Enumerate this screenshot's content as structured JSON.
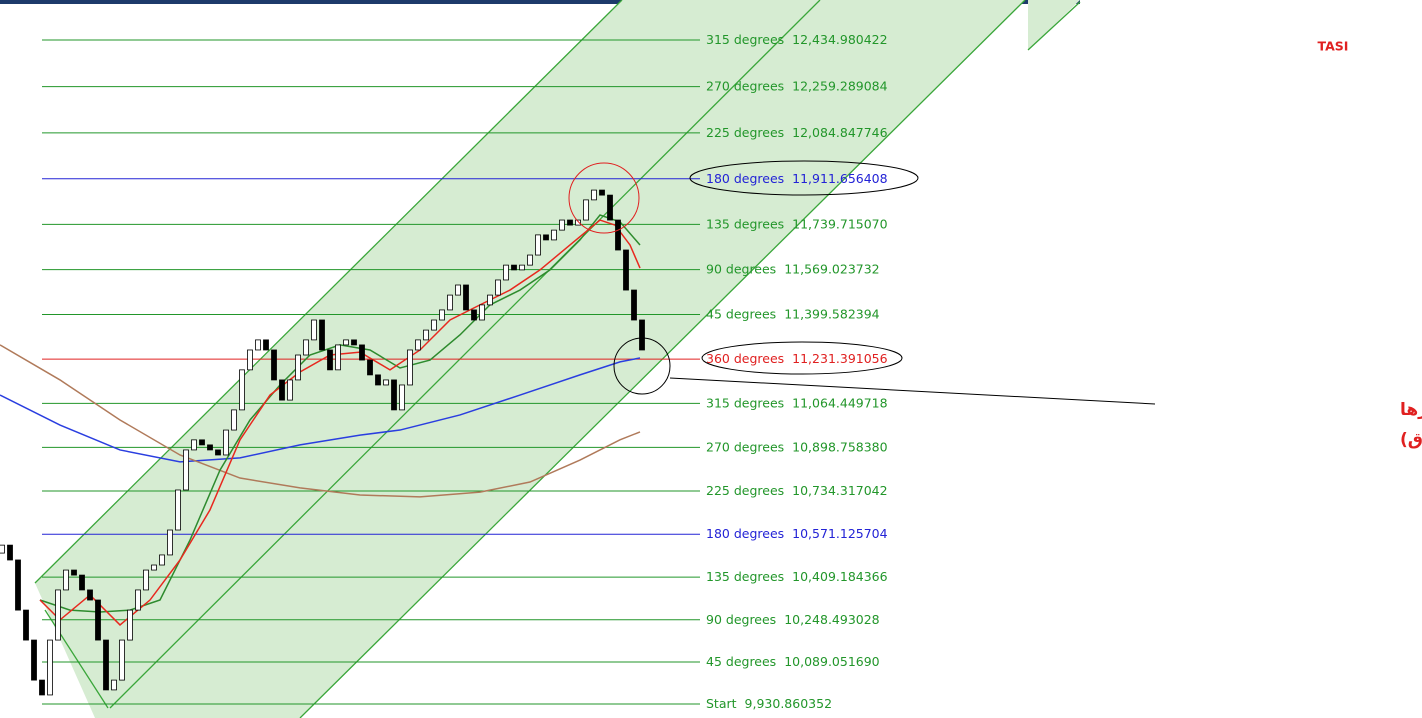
{
  "chart_data": {
    "type": "candlestick",
    "title": "TASI",
    "annotation": [
      "منطقة ارتداد مهمه كسرها",
      "غير جيد (العبرة بالاغلاق)"
    ],
    "levels": [
      {
        "label": "315 degrees",
        "value": 12434.980422,
        "value_label": "12,434.980422",
        "color": "#22962a"
      },
      {
        "label": "270 degrees",
        "value": 12259.289084,
        "value_label": "12,259.289084",
        "color": "#22962a"
      },
      {
        "label": "225 degrees",
        "value": 12084.847746,
        "value_label": "12,084.847746",
        "color": "#22962a"
      },
      {
        "label": "180 degrees",
        "value": 11911.656408,
        "value_label": "11,911.656408",
        "color": "#2323d6"
      },
      {
        "label": "135 degrees",
        "value": 11739.71507,
        "value_label": "11,739.715070",
        "color": "#22962a"
      },
      {
        "label": "90 degrees",
        "value": 11569.023732,
        "value_label": "11,569.023732",
        "color": "#22962a"
      },
      {
        "label": "45 degrees",
        "value": 11399.582394,
        "value_label": "11,399.582394",
        "color": "#22962a"
      },
      {
        "label": "360 degrees",
        "value": 11231.391056,
        "value_label": "11,231.391056",
        "color": "#e02020"
      },
      {
        "label": "315 degrees",
        "value": 11064.449718,
        "value_label": "11,064.449718",
        "color": "#22962a"
      },
      {
        "label": "270 degrees",
        "value": 10898.75838,
        "value_label": "10,898.758380",
        "color": "#22962a"
      },
      {
        "label": "225 degrees",
        "value": 10734.317042,
        "value_label": "10,734.317042",
        "color": "#22962a"
      },
      {
        "label": "180 degrees",
        "value": 10571.125704,
        "value_label": "10,571.125704",
        "color": "#2323d6"
      },
      {
        "label": "135 degrees",
        "value": 10409.184366,
        "value_label": "10,409.184366",
        "color": "#22962a"
      },
      {
        "label": "90 degrees",
        "value": 10248.493028,
        "value_label": "10,248.493028",
        "color": "#22962a"
      },
      {
        "label": "45 degrees",
        "value": 10089.05169,
        "value_label": "10,089.051690",
        "color": "#22962a"
      },
      {
        "label": "Start",
        "value": 9930.860352,
        "value_label": "9,930.860352",
        "color": "#22962a"
      }
    ],
    "candles": {
      "open": [
        10500,
        10530,
        10474,
        10285,
        10172,
        10021,
        9965,
        10172,
        10361,
        10436,
        10417,
        10361,
        10323,
        10172,
        9984,
        10021,
        10172,
        10285,
        10361,
        10436,
        10455,
        10493,
        10587,
        10738,
        10889,
        10927,
        10908,
        10889,
        10870,
        10964,
        11040,
        11191,
        11266,
        11304,
        11266,
        11153,
        11077,
        11153,
        11247,
        11304,
        11379,
        11266,
        11191,
        11285,
        11304,
        11285,
        11228,
        11172,
        11134,
        11153,
        11040,
        11134,
        11266,
        11304,
        11341,
        11379,
        11417,
        11473,
        11511,
        11417,
        11379,
        11436,
        11473,
        11530,
        11586,
        11568,
        11586,
        11624,
        11700,
        11681,
        11718,
        11756,
        11737,
        11756,
        11832,
        11869,
        11850,
        11756,
        11643,
        11492,
        11379
      ],
      "close": [
        10530,
        10474,
        10285,
        10172,
        10021,
        9965,
        10172,
        10361,
        10436,
        10417,
        10361,
        10323,
        10172,
        9984,
        10021,
        10172,
        10285,
        10361,
        10436,
        10455,
        10493,
        10587,
        10738,
        10889,
        10927,
        10908,
        10889,
        10870,
        10964,
        11040,
        11191,
        11266,
        11304,
        11266,
        11153,
        11077,
        11153,
        11247,
        11304,
        11379,
        11266,
        11191,
        11285,
        11304,
        11285,
        11228,
        11172,
        11134,
        11153,
        11040,
        11134,
        11266,
        11304,
        11341,
        11379,
        11417,
        11473,
        11511,
        11417,
        11379,
        11436,
        11473,
        11530,
        11586,
        11568,
        11586,
        11624,
        11700,
        11681,
        11718,
        11756,
        11737,
        11756,
        11832,
        11869,
        11850,
        11756,
        11643,
        11492,
        11379,
        11266
      ],
      "up_color": "#ffffff",
      "down_color": "#000000"
    },
    "series": [
      {
        "color": "#2a3ee0",
        "x": [
          -0.25,
          7.25,
          14.75,
          22.25,
          29.75,
          37.25,
          44.75,
          49.75,
          57.25,
          64.75,
          72.25,
          77.25,
          79.75
        ],
        "values": [
          11096,
          10983,
          10889,
          10844,
          10859,
          10908,
          10945,
          10964,
          11021,
          11096,
          11172,
          11221,
          11236
        ]
      },
      {
        "color": "#b07a5a",
        "x": [
          -0.25,
          7.25,
          14.75,
          22.25,
          29.75,
          37.25,
          44.75,
          52.25,
          59.75,
          66,
          72.25,
          77.25,
          79.75
        ],
        "values": [
          11285,
          11153,
          11002,
          10870,
          10783,
          10746,
          10719,
          10712,
          10730,
          10768,
          10851,
          10927,
          10957
        ]
      },
      {
        "color": "#2e8b2e",
        "x": [
          4.75,
          8.5,
          12.25,
          16,
          19.75,
          23.5,
          27.25,
          31,
          34.75,
          38.5,
          42.25,
          46,
          49.75,
          53.5,
          57.25,
          61,
          64.75,
          68.5,
          72.25,
          74.75,
          77.25,
          79.75
        ],
        "values": [
          10323,
          10285,
          10278,
          10285,
          10323,
          10549,
          10813,
          11002,
          11134,
          11247,
          11285,
          11266,
          11198,
          11228,
          11323,
          11436,
          11492,
          11568,
          11681,
          11775,
          11749,
          11662
        ]
      },
      {
        "color": "#e8281e",
        "x": [
          4.75,
          7.25,
          11,
          14.75,
          18.5,
          22.25,
          26,
          29.75,
          33.5,
          37.25,
          41,
          44.75,
          48.5,
          52.25,
          56,
          59.75,
          63.5,
          67.25,
          71,
          74.75,
          76.625,
          78.5,
          79.75
        ],
        "values": [
          10323,
          10248,
          10342,
          10229,
          10323,
          10474,
          10663,
          10927,
          11096,
          11183,
          11247,
          11258,
          11191,
          11266,
          11379,
          11436,
          11492,
          11568,
          11662,
          11756,
          11737,
          11662,
          11575
        ]
      }
    ]
  }
}
